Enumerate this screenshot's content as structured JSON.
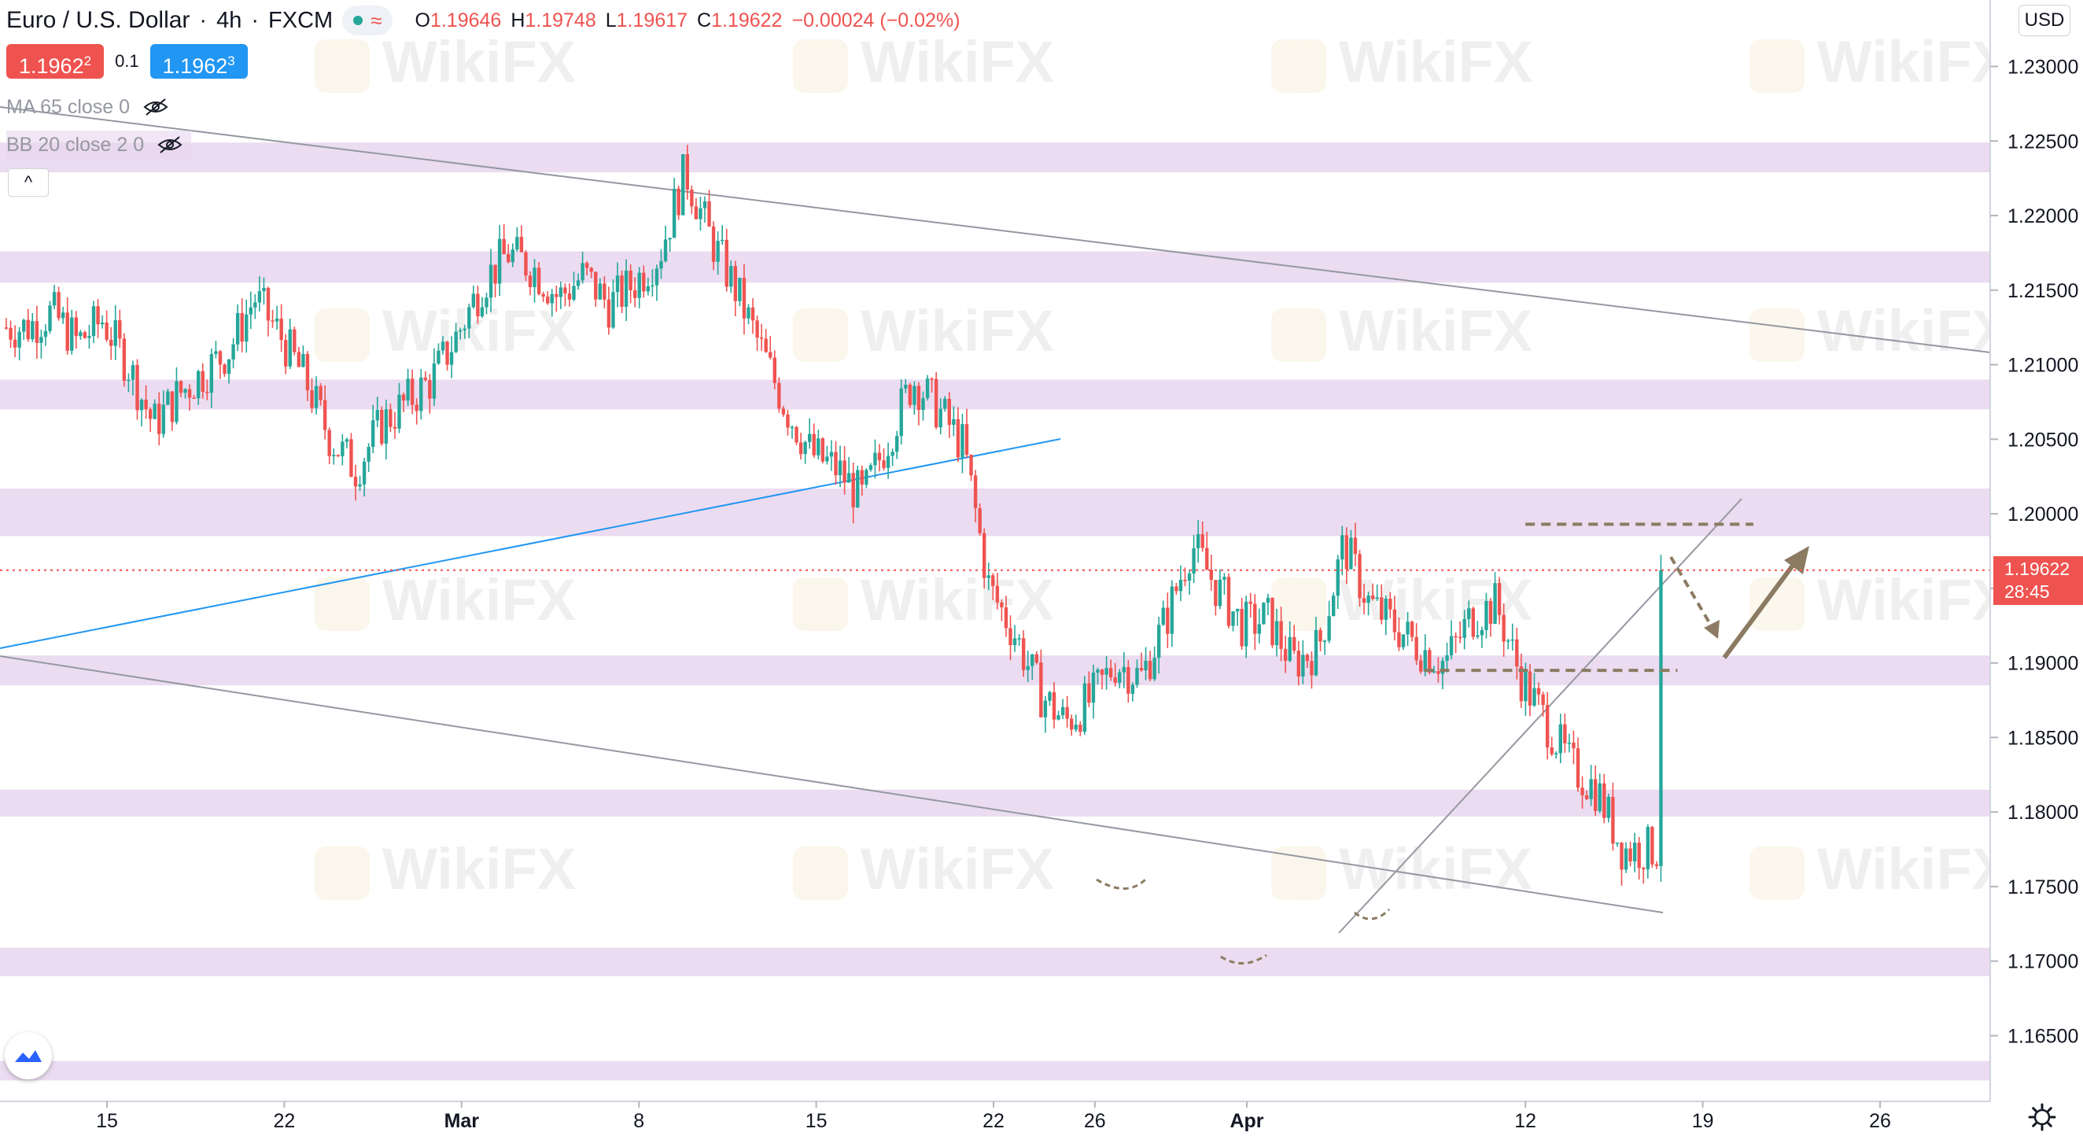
{
  "header": {
    "symbol": "Euro / U.S. Dollar",
    "interval": "4h",
    "exchange": "FXCM",
    "status_icon": "market-open-dot",
    "ohlc": {
      "o_label": "O",
      "o": "1.19646",
      "h_label": "H",
      "h": "1.19748",
      "l_label": "L",
      "l": "1.19617",
      "c_label": "C",
      "c": "1.19622",
      "change": "−0.00024 (−0.02%)"
    }
  },
  "prices": {
    "sell_main": "1.1962",
    "sell_sup": "2",
    "spread": "0.1",
    "buy_main": "1.1962",
    "buy_sup": "3"
  },
  "indicators": [
    {
      "label": "MA 65 close 0",
      "icon": "eye-off-icon"
    },
    {
      "label": "BB 20 close 2 0",
      "icon": "eye-off-icon"
    }
  ],
  "collapse_label": "^",
  "currency_label": "USD",
  "current_price": {
    "value": "1.19622",
    "countdown": "28:45"
  },
  "watermark_text": "WikiFX",
  "colors": {
    "up": "#26a69a",
    "down": "#ef5350",
    "zone": "#e7d6ee",
    "blue_line": "#2196f3",
    "trend_line": "#9598a1",
    "annotation": "#8b7b62",
    "price_line": "#ef5350"
  },
  "chart_data": {
    "type": "candlestick",
    "instrument": "EUR/USD",
    "timeframe": "4h",
    "ylim": [
      1.1615,
      1.233
    ],
    "y_ticks": [
      "1.16500",
      "1.17000",
      "1.17500",
      "1.18000",
      "1.18500",
      "1.19000",
      "1.19500",
      "1.20000",
      "1.20500",
      "1.21000",
      "1.21500",
      "1.22000",
      "1.22500",
      "1.23000"
    ],
    "x_ticks": [
      {
        "label": "15",
        "date": "2021-02-15"
      },
      {
        "label": "22",
        "date": "2021-02-22"
      },
      {
        "label": "Mar",
        "date": "2021-03-01",
        "bold": true
      },
      {
        "label": "8",
        "date": "2021-03-08"
      },
      {
        "label": "15",
        "date": "2021-03-15"
      },
      {
        "label": "22",
        "date": "2021-03-22"
      },
      {
        "label": "26",
        "date": "2021-03-26"
      },
      {
        "label": "Apr",
        "date": "2021-04-01",
        "bold": true
      },
      {
        "label": "12",
        "date": "2021-04-12"
      },
      {
        "label": "19",
        "date": "2021-04-19"
      },
      {
        "label": "26",
        "date": "2021-04-26"
      }
    ],
    "x_range": [
      "2021-02-12",
      "2021-04-29"
    ],
    "close_path": [
      [
        "2021-02-12",
        1.2125
      ],
      [
        "2021-02-13",
        1.2135
      ],
      [
        "2021-02-14",
        1.2115
      ],
      [
        "2021-02-15",
        1.213
      ],
      [
        "2021-02-16",
        1.21
      ],
      [
        "2021-02-17",
        1.206
      ],
      [
        "2021-02-18",
        1.208
      ],
      [
        "2021-02-19",
        1.2095
      ],
      [
        "2021-02-20",
        1.211
      ],
      [
        "2021-02-21",
        1.2145
      ],
      [
        "2021-02-22",
        1.212
      ],
      [
        "2021-02-23",
        1.209
      ],
      [
        "2021-02-24",
        1.205
      ],
      [
        "2021-02-25",
        1.203
      ],
      [
        "2021-02-26",
        1.206
      ],
      [
        "2021-02-27",
        1.2075
      ],
      [
        "2021-02-28",
        1.209
      ],
      [
        "2021-03-01",
        1.212
      ],
      [
        "2021-03-02",
        1.2155
      ],
      [
        "2021-03-03",
        1.2175
      ],
      [
        "2021-03-04",
        1.2165
      ],
      [
        "2021-03-05",
        1.2145
      ],
      [
        "2021-03-06",
        1.216
      ],
      [
        "2021-03-07",
        1.214
      ],
      [
        "2021-03-08",
        1.2155
      ],
      [
        "2021-03-09",
        1.2175
      ],
      [
        "2021-03-10",
        1.223
      ],
      [
        "2021-03-11",
        1.2185
      ],
      [
        "2021-03-12",
        1.215
      ],
      [
        "2021-03-13",
        1.211
      ],
      [
        "2021-03-14",
        1.207
      ],
      [
        "2021-03-15",
        1.204
      ],
      [
        "2021-03-16",
        1.203
      ],
      [
        "2021-03-17",
        1.201
      ],
      [
        "2021-03-18",
        1.205
      ],
      [
        "2021-03-19",
        1.209
      ],
      [
        "2021-03-20",
        1.207
      ],
      [
        "2021-03-21",
        1.2045
      ],
      [
        "2021-03-22",
        1.195
      ],
      [
        "2021-03-23",
        1.192
      ],
      [
        "2021-03-24",
        1.188
      ],
      [
        "2021-03-25",
        1.186
      ],
      [
        "2021-03-26",
        1.1875
      ],
      [
        "2021-03-27",
        1.19
      ],
      [
        "2021-03-28",
        1.189
      ],
      [
        "2021-03-29",
        1.193
      ],
      [
        "2021-03-30",
        1.198
      ],
      [
        "2021-03-31",
        1.195
      ],
      [
        "2021-04-01",
        1.1925
      ],
      [
        "2021-04-02",
        1.193
      ],
      [
        "2021-04-03",
        1.19
      ],
      [
        "2021-04-04",
        1.191
      ],
      [
        "2021-04-05",
        1.198
      ],
      [
        "2021-04-06",
        1.194
      ],
      [
        "2021-04-07",
        1.1925
      ],
      [
        "2021-04-08",
        1.191
      ],
      [
        "2021-04-09",
        1.19
      ],
      [
        "2021-04-10",
        1.193
      ],
      [
        "2021-04-11",
        1.194
      ],
      [
        "2021-04-12",
        1.189
      ],
      [
        "2021-04-13",
        1.186
      ],
      [
        "2021-04-14",
        1.183
      ],
      [
        "2021-04-15",
        1.1815
      ],
      [
        "2021-04-16",
        1.1775
      ]
    ],
    "zones": [
      [
        1.162,
        1.1633
      ],
      [
        1.169,
        1.1709
      ],
      [
        1.1797,
        1.1815
      ],
      [
        1.1885,
        1.1905
      ],
      [
        1.1985,
        1.2017
      ],
      [
        1.207,
        1.209
      ],
      [
        1.2155,
        1.2176
      ],
      [
        1.2229,
        1.2249
      ]
    ],
    "current_price": 1.19622,
    "annotations": [
      {
        "kind": "resistance-dashed",
        "y": 1.1993,
        "x": [
          "2021-04-12",
          "2021-04-21"
        ]
      },
      {
        "kind": "support-dashed",
        "y": 1.1895,
        "x": [
          "2021-04-08",
          "2021-04-18"
        ]
      }
    ],
    "grid": false
  }
}
